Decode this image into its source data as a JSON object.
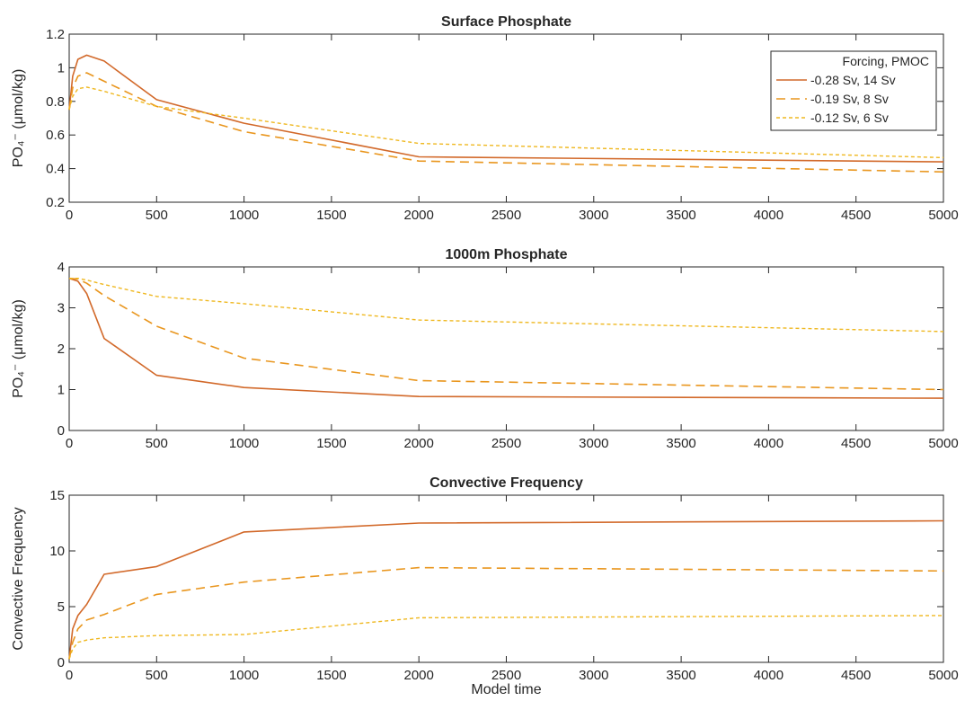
{
  "colors": {
    "series1": "#d2692a",
    "series2": "#e9961e",
    "series3": "#efb820",
    "axis": "#262626"
  },
  "legend": {
    "title": "Forcing, PMOC",
    "placement": "top-right"
  },
  "xlabel": "Model time",
  "chart_data": [
    {
      "type": "line",
      "title": "Surface Phosphate",
      "ylabel": "PO₄⁻ (μmol/kg)",
      "xlim": [
        0,
        5000
      ],
      "ylim": [
        0.2,
        1.2
      ],
      "xticks": [
        0,
        500,
        1000,
        1500,
        2000,
        2500,
        3000,
        3500,
        4000,
        4500,
        5000
      ],
      "yticks": [
        0.2,
        0.4,
        0.6,
        0.8,
        1,
        1.2
      ],
      "ytick_labels": [
        "0.2",
        "0.4",
        "0.6",
        "0.8",
        "1",
        "1.2"
      ],
      "legend": true,
      "series": [
        {
          "name": "-0.28 Sv, 14 Sv",
          "style": "solid",
          "x": [
            0,
            20,
            50,
            100,
            200,
            500,
            1000,
            2000,
            5000
          ],
          "y": [
            0.75,
            0.95,
            1.05,
            1.075,
            1.04,
            0.81,
            0.67,
            0.47,
            0.44
          ]
        },
        {
          "name": "-0.19 Sv, 8 Sv",
          "style": "dashed",
          "x": [
            0,
            20,
            50,
            100,
            200,
            500,
            1000,
            2000,
            5000
          ],
          "y": [
            0.75,
            0.88,
            0.95,
            0.97,
            0.92,
            0.77,
            0.62,
            0.445,
            0.38
          ]
        },
        {
          "name": "-0.12 Sv, 6 Sv",
          "style": "dotted",
          "x": [
            0,
            20,
            50,
            100,
            200,
            500,
            1000,
            2000,
            5000
          ],
          "y": [
            0.75,
            0.83,
            0.875,
            0.885,
            0.86,
            0.77,
            0.7,
            0.55,
            0.465
          ]
        }
      ]
    },
    {
      "type": "line",
      "title": "1000m Phosphate",
      "ylabel": "PO₄⁻ (μmol/kg)",
      "xlim": [
        0,
        5000
      ],
      "ylim": [
        0,
        4
      ],
      "xticks": [
        0,
        500,
        1000,
        1500,
        2000,
        2500,
        3000,
        3500,
        4000,
        4500,
        5000
      ],
      "yticks": [
        0,
        1,
        2,
        3,
        4
      ],
      "ytick_labels": [
        "0",
        "1",
        "2",
        "3",
        "4"
      ],
      "legend": false,
      "series": [
        {
          "name": "-0.28 Sv, 14 Sv",
          "style": "solid",
          "x": [
            0,
            50,
            100,
            200,
            500,
            1000,
            2000,
            5000
          ],
          "y": [
            3.72,
            3.65,
            3.35,
            2.25,
            1.35,
            1.05,
            0.83,
            0.79
          ]
        },
        {
          "name": "-0.19 Sv, 8 Sv",
          "style": "dashed",
          "x": [
            0,
            50,
            100,
            200,
            500,
            1000,
            2000,
            5000
          ],
          "y": [
            3.72,
            3.7,
            3.6,
            3.3,
            2.55,
            1.77,
            1.22,
            1.0
          ]
        },
        {
          "name": "-0.12 Sv, 6 Sv",
          "style": "dotted",
          "x": [
            0,
            50,
            100,
            200,
            500,
            1000,
            2000,
            5000
          ],
          "y": [
            3.72,
            3.72,
            3.68,
            3.57,
            3.28,
            3.1,
            2.7,
            2.42
          ]
        }
      ]
    },
    {
      "type": "line",
      "title": "Convective Frequency",
      "ylabel": "Convective Frequency",
      "xlim": [
        0,
        5000
      ],
      "ylim": [
        0,
        15
      ],
      "xticks": [
        0,
        500,
        1000,
        1500,
        2000,
        2500,
        3000,
        3500,
        4000,
        4500,
        5000
      ],
      "yticks": [
        0,
        5,
        10,
        15
      ],
      "ytick_labels": [
        "0",
        "5",
        "10",
        "15"
      ],
      "legend": false,
      "series": [
        {
          "name": "-0.28 Sv, 14 Sv",
          "style": "solid",
          "x": [
            0,
            20,
            50,
            100,
            200,
            500,
            1000,
            2000,
            5000
          ],
          "y": [
            0.3,
            3.0,
            4.2,
            5.2,
            7.9,
            8.6,
            11.7,
            12.5,
            12.7
          ]
        },
        {
          "name": "-0.19 Sv, 8 Sv",
          "style": "dashed",
          "x": [
            0,
            20,
            50,
            100,
            200,
            500,
            1000,
            2000,
            5000
          ],
          "y": [
            0.3,
            1.8,
            3.0,
            3.8,
            4.3,
            6.1,
            7.2,
            8.5,
            8.2
          ]
        },
        {
          "name": "-0.12 Sv, 6 Sv",
          "style": "dotted",
          "x": [
            0,
            20,
            50,
            100,
            200,
            500,
            1000,
            2000,
            5000
          ],
          "y": [
            0.3,
            1.2,
            1.8,
            2.0,
            2.2,
            2.4,
            2.5,
            4.0,
            4.2
          ]
        }
      ]
    }
  ]
}
